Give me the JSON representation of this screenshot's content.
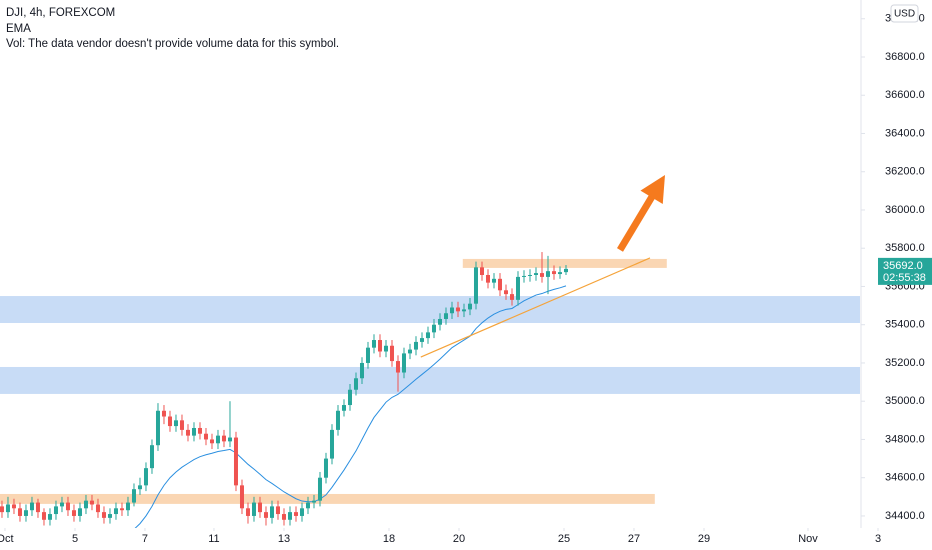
{
  "chart_data": {
    "type": "candlestick",
    "title": "DJI, 4h, FOREXCOM",
    "note": "Vol: The data vendor doesn't provide volume data for this symbol.",
    "currency": "USD",
    "grid": false,
    "up_color": "#26a69a",
    "down_color": "#ef5350",
    "xlim": [
      -0.33,
      143
    ],
    "ylim": [
      34337,
      37098
    ],
    "xticks": [
      {
        "value": 0.5,
        "label": "Oct"
      },
      {
        "value": 12.17,
        "label": "5"
      },
      {
        "value": 23.83,
        "label": "7"
      },
      {
        "value": 35.33,
        "label": "11"
      },
      {
        "value": 47,
        "label": "13"
      },
      {
        "value": 64.5,
        "label": "18"
      },
      {
        "value": 76.17,
        "label": "20"
      },
      {
        "value": 93.67,
        "label": "25"
      },
      {
        "value": 105.33,
        "label": "27"
      },
      {
        "value": 117,
        "label": "29"
      },
      {
        "value": 134.33,
        "label": "Nov"
      },
      {
        "value": 146,
        "label": "3"
      }
    ],
    "yticks": [
      {
        "value": 34400,
        "label": "34400.0"
      },
      {
        "value": 34600,
        "label": "34600.0"
      },
      {
        "value": 34800,
        "label": "34800.0"
      },
      {
        "value": 35000,
        "label": "35000.0"
      },
      {
        "value": 35200,
        "label": "35200.0"
      },
      {
        "value": 35400,
        "label": "35400.0"
      },
      {
        "value": 35600,
        "label": "35600.0"
      },
      {
        "value": 35800,
        "label": "35800.0"
      },
      {
        "value": 36000,
        "label": "36000.0"
      },
      {
        "value": 36200,
        "label": "36200.0"
      },
      {
        "value": 36400,
        "label": "36400.0"
      },
      {
        "value": 36600,
        "label": "36600.0"
      },
      {
        "value": 36800,
        "label": "36800.0"
      },
      {
        "value": 37000,
        "label": "37000.0"
      }
    ],
    "candles": {
      "x": [
        0,
        1,
        2,
        3,
        4,
        5,
        6,
        7,
        8,
        9,
        10,
        11,
        12,
        13,
        14,
        15,
        16,
        17,
        18,
        19,
        20,
        21,
        22,
        23,
        24,
        25,
        26,
        27,
        28,
        29,
        30,
        31,
        32,
        33,
        34,
        35,
        36,
        37,
        38,
        39,
        40,
        41,
        42,
        43,
        44,
        45,
        46,
        47,
        48,
        49,
        50,
        51,
        52,
        53,
        54,
        55,
        56,
        57,
        58,
        59,
        60,
        61,
        62,
        63,
        64,
        65,
        66,
        67,
        68,
        69,
        70,
        71,
        72,
        73,
        74,
        75,
        76,
        77,
        78,
        79,
        80,
        81,
        82,
        83,
        84,
        85,
        86,
        87,
        88,
        89,
        90,
        91,
        92,
        93,
        94
      ],
      "open": [
        34450,
        34420,
        34460,
        34440,
        34400,
        34430,
        34470,
        34420,
        34380,
        34410,
        34450,
        34470,
        34430,
        34400,
        34440,
        34480,
        34460,
        34420,
        34390,
        34410,
        34440,
        34430,
        34470,
        34540,
        34560,
        34650,
        34770,
        34950,
        34920,
        34870,
        34900,
        34850,
        34820,
        34860,
        34830,
        34800,
        34780,
        34820,
        34790,
        34810,
        34560,
        34440,
        34400,
        34470,
        34420,
        34390,
        34450,
        34410,
        34380,
        34420,
        34400,
        34440,
        34470,
        34480,
        34600,
        34700,
        34850,
        34950,
        34980,
        35060,
        35120,
        35200,
        35280,
        35320,
        35260,
        35290,
        35210,
        35150,
        35250,
        35270,
        35310,
        35330,
        35360,
        35400,
        35430,
        35460,
        35490,
        35470,
        35480,
        35510,
        35700,
        35660,
        35620,
        35640,
        35580,
        35560,
        35530,
        35650,
        35655,
        35660,
        35670,
        35650,
        35680,
        35665,
        35675
      ],
      "high": [
        34480,
        34500,
        34490,
        34470,
        34460,
        34500,
        34490,
        34440,
        34440,
        34480,
        34500,
        34500,
        34460,
        34470,
        34510,
        34510,
        34490,
        34450,
        34440,
        34470,
        34470,
        34500,
        34570,
        34600,
        34680,
        34800,
        34990,
        34980,
        34950,
        34930,
        34930,
        34880,
        34890,
        34890,
        34860,
        34830,
        34850,
        34850,
        35000,
        34840,
        34590,
        34470,
        34500,
        34500,
        34450,
        34480,
        34480,
        34440,
        34450,
        34450,
        34470,
        34500,
        34510,
        34630,
        34730,
        34880,
        34980,
        35010,
        35090,
        35150,
        35230,
        35310,
        35350,
        35350,
        35320,
        35320,
        35240,
        35280,
        35300,
        35340,
        35360,
        35390,
        35430,
        35460,
        35490,
        35520,
        35520,
        35510,
        35540,
        35730,
        35730,
        35690,
        35670,
        35670,
        35610,
        35590,
        35680,
        35685,
        35690,
        35700,
        35780,
        35760,
        35710,
        35705,
        35712
      ],
      "low": [
        34390,
        34390,
        34410,
        34370,
        34370,
        34400,
        34390,
        34350,
        34350,
        34380,
        34420,
        34400,
        34370,
        34370,
        34410,
        34430,
        34390,
        34360,
        34360,
        34380,
        34400,
        34400,
        34450,
        34510,
        34530,
        34620,
        34740,
        34880,
        34840,
        34840,
        34820,
        34790,
        34790,
        34800,
        34770,
        34750,
        34750,
        34760,
        34760,
        34530,
        34410,
        34360,
        34370,
        34390,
        34350,
        34360,
        34380,
        34350,
        34350,
        34370,
        34370,
        34410,
        34440,
        34450,
        34570,
        34670,
        34820,
        34920,
        34950,
        35030,
        35090,
        35170,
        35250,
        35230,
        35230,
        35180,
        35050,
        35120,
        35220,
        35240,
        35280,
        35300,
        35330,
        35370,
        35400,
        35430,
        35440,
        35440,
        35450,
        35480,
        35630,
        35590,
        35590,
        35550,
        35530,
        35500,
        35500,
        35620,
        35625,
        35630,
        35620,
        35560,
        35635,
        35640,
        35660
      ],
      "close": [
        34420,
        34460,
        34440,
        34400,
        34430,
        34470,
        34420,
        34380,
        34410,
        34450,
        34470,
        34430,
        34400,
        34440,
        34480,
        34460,
        34420,
        34390,
        34410,
        34440,
        34430,
        34470,
        34540,
        34560,
        34650,
        34770,
        34950,
        34920,
        34870,
        34900,
        34850,
        34820,
        34860,
        34830,
        34800,
        34780,
        34820,
        34790,
        34810,
        34560,
        34440,
        34400,
        34470,
        34420,
        34390,
        34450,
        34410,
        34380,
        34420,
        34400,
        34440,
        34470,
        34480,
        34600,
        34700,
        34850,
        34950,
        34980,
        35060,
        35120,
        35200,
        35280,
        35320,
        35260,
        35290,
        35210,
        35150,
        35250,
        35270,
        35310,
        35330,
        35360,
        35400,
        35430,
        35460,
        35490,
        35470,
        35480,
        35510,
        35700,
        35660,
        35620,
        35640,
        35580,
        35560,
        35530,
        35650,
        35655,
        35660,
        35670,
        35650,
        35680,
        35665,
        35675,
        35692
      ]
    },
    "series": [
      {
        "name": "EMA",
        "color": "#2a8fe0",
        "values": [
          null,
          null,
          null,
          null,
          null,
          null,
          null,
          null,
          null,
          null,
          null,
          null,
          null,
          null,
          null,
          null,
          null,
          null,
          null,
          null,
          null,
          null,
          34330,
          34360,
          34400,
          34450,
          34510,
          34560,
          34600,
          34630,
          34655,
          34675,
          34695,
          34710,
          34720,
          34728,
          34737,
          34742,
          34748,
          34730,
          34700,
          34670,
          34645,
          34618,
          34590,
          34570,
          34548,
          34526,
          34508,
          34490,
          34478,
          34474,
          34474,
          34488,
          34510,
          34550,
          34595,
          34640,
          34690,
          34740,
          34800,
          34860,
          34915,
          34955,
          34995,
          35020,
          35036,
          35062,
          35088,
          35115,
          35140,
          35165,
          35192,
          35220,
          35250,
          35280,
          35300,
          35320,
          35340,
          35380,
          35410,
          35435,
          35455,
          35470,
          35480,
          35485,
          35505,
          35525,
          35540,
          35555,
          35563,
          35575,
          35585,
          35593,
          35603
        ]
      }
    ],
    "zones": [
      {
        "y": [
          35409,
          35550
        ],
        "color": "#c8dcf6"
      },
      {
        "y": [
          35038,
          35179
        ],
        "color": "#c8dcf6"
      },
      {
        "y": [
          35697,
          35744
        ],
        "x": [
          76.8,
          110.8
        ],
        "color": "#fad6b3"
      },
      {
        "y": [
          34463,
          34515
        ],
        "x": [
          -0.33,
          108.8
        ],
        "color": "#fad6b3"
      }
    ],
    "trendline": {
      "x": [
        69.8,
        108
      ],
      "y": [
        35231,
        35749
      ],
      "color": "#f5a33a"
    },
    "arrow": {
      "x": [
        103,
        110.5
      ],
      "y": [
        35791,
        36183
      ],
      "color": "#f57a1e"
    },
    "last_price": {
      "value": 35692,
      "label": "35692.0",
      "countdown": "02:55:38",
      "color": "#26a69a"
    }
  }
}
